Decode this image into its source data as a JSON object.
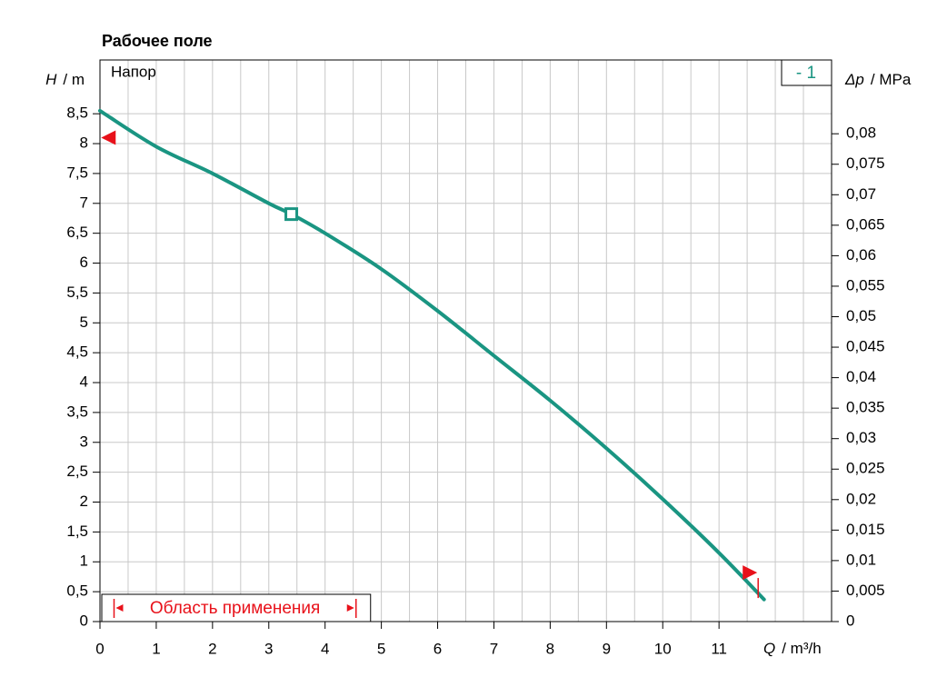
{
  "chart_data": {
    "type": "line",
    "title": "Рабочее поле",
    "curve_label": "Напор",
    "x_label": {
      "symbol": "Q",
      "unit": "/ m³/h"
    },
    "y_label": {
      "symbol": "H",
      "unit": "/ m"
    },
    "y2_label": {
      "symbol": "Δp",
      "unit": "/ MPa"
    },
    "xlim": [
      0,
      13
    ],
    "ylim": [
      0,
      9.4
    ],
    "y2lim": [
      0,
      0.0921
    ],
    "xticks": [
      0,
      1,
      2,
      3,
      4,
      5,
      6,
      7,
      8,
      9,
      10,
      11
    ],
    "xgrid": [
      0.5,
      1,
      1.5,
      2,
      2.5,
      3,
      3.5,
      4,
      4.5,
      5,
      5.5,
      6,
      6.5,
      7,
      7.5,
      8,
      8.5,
      9,
      9.5,
      10,
      10.5,
      11,
      11.5,
      12,
      12.5
    ],
    "yticks": [
      0,
      {
        "value": 0.5,
        "label": "0,5"
      },
      1,
      {
        "value": 1.5,
        "label": "1,5"
      },
      2,
      {
        "value": 2.5,
        "label": "2,5"
      },
      3,
      {
        "value": 3.5,
        "label": "3,5"
      },
      4,
      {
        "value": 4.5,
        "label": "4,5"
      },
      5,
      {
        "value": 5.5,
        "label": "5,5"
      },
      6,
      {
        "value": 6.5,
        "label": "6,5"
      },
      7,
      {
        "value": 7.5,
        "label": "7,5"
      },
      8,
      {
        "value": 8.5,
        "label": "8,5"
      }
    ],
    "y2ticks": [
      0,
      {
        "value": 0.005,
        "label": "0,005"
      },
      {
        "value": 0.01,
        "label": "0,01"
      },
      {
        "value": 0.015,
        "label": "0,015"
      },
      {
        "value": 0.02,
        "label": "0,02"
      },
      {
        "value": 0.025,
        "label": "0,025"
      },
      {
        "value": 0.03,
        "label": "0,03"
      },
      {
        "value": 0.035,
        "label": "0,035"
      },
      {
        "value": 0.04,
        "label": "0,04"
      },
      {
        "value": 0.045,
        "label": "0,045"
      },
      {
        "value": 0.05,
        "label": "0,05"
      },
      {
        "value": 0.055,
        "label": "0,055"
      },
      {
        "value": 0.06,
        "label": "0,06"
      },
      {
        "value": 0.065,
        "label": "0,065"
      },
      {
        "value": 0.07,
        "label": "0,07"
      },
      {
        "value": 0.075,
        "label": "0,075"
      },
      {
        "value": 0.08,
        "label": "0,08"
      }
    ],
    "grid": true,
    "series": [
      {
        "name": "- 1",
        "color": "#1a9582",
        "x": [
          0,
          1,
          2,
          3,
          3.4,
          4,
          5,
          6,
          7,
          8,
          9,
          10,
          11,
          11.8
        ],
        "values": [
          8.55,
          7.95,
          7.5,
          7.0,
          6.82,
          6.5,
          5.9,
          5.2,
          4.45,
          3.7,
          2.9,
          2.05,
          1.15,
          0.37
        ]
      }
    ],
    "operating_point": {
      "x": 3.4,
      "y": 6.82
    },
    "limit_markers": [
      {
        "x": 0.15,
        "y": 8.1
      },
      {
        "x": 11.55,
        "y": 0.82
      }
    ],
    "application_range": {
      "label": "Область применения",
      "from": 0.25,
      "to": 4.55
    }
  }
}
